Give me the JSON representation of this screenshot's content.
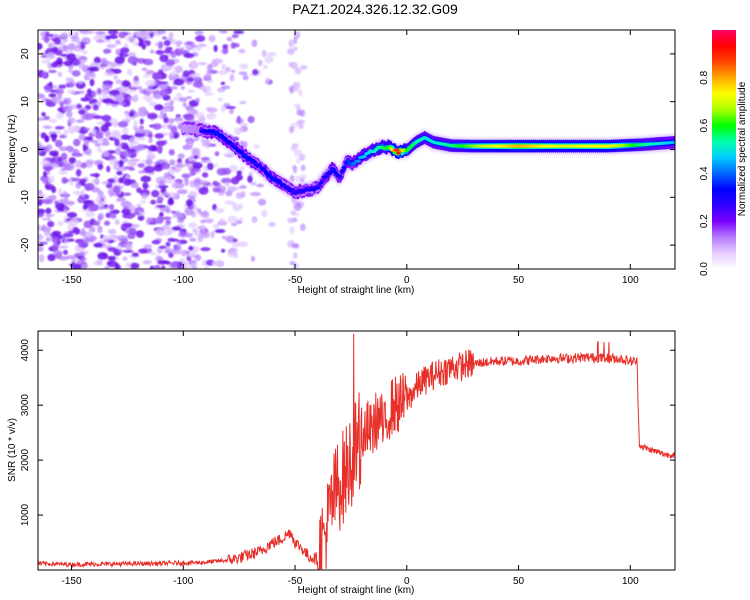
{
  "title": "PAZ1.2024.326.12.32.G09",
  "colors": {
    "series": "#e8302a",
    "specklePurple": "#8a2be2",
    "frame": "#000000"
  },
  "chart_data": [
    {
      "type": "heatmap",
      "xlabel": "Height of straight line (km)",
      "ylabel": "Frequency (Hz)",
      "xlim": [
        -165,
        120
      ],
      "ylim": [
        -25,
        25
      ],
      "xticks": [
        -150,
        -100,
        -50,
        0,
        50,
        100
      ],
      "yticks": [
        -20,
        -10,
        0,
        10,
        20
      ],
      "colorbar": {
        "label": "Normalized spectral amplitude",
        "range": [
          0,
          1
        ],
        "ticks": [
          "0.0",
          "0.2",
          "0.4",
          "0.6",
          "0.8"
        ],
        "colormap": [
          "#ffffff",
          "#e6ccff",
          "#b57bff",
          "#7b00ff",
          "#2f00ff",
          "#0000ff",
          "#0066ff",
          "#00ccff",
          "#00ffaa",
          "#00ff00",
          "#aaff00",
          "#ffff00",
          "#ffaa00",
          "#ff4400",
          "#ff0000",
          "#ff0066"
        ]
      },
      "ridge": {
        "x": [
          -100,
          -92,
          -85,
          -78,
          -72,
          -66,
          -60,
          -55,
          -50,
          -45,
          -40,
          -37,
          -33,
          -30,
          -27,
          -24,
          -20,
          -16,
          -12,
          -8,
          -4,
          0,
          4,
          8,
          12,
          20,
          30,
          50,
          70,
          90,
          105,
          120
        ],
        "y": [
          4.5,
          4,
          3.5,
          1,
          -1.5,
          -3.5,
          -6,
          -7.5,
          -9,
          -8.5,
          -8,
          -6,
          -4,
          -6,
          -2.5,
          -3,
          -1.5,
          -0.5,
          0.5,
          0.5,
          -0.5,
          -0.2,
          1.5,
          2.5,
          1.5,
          0.8,
          0.7,
          0.7,
          0.7,
          0.7,
          1,
          1.5
        ],
        "amplitude": [
          0.25,
          0.3,
          0.35,
          0.3,
          0.35,
          0.3,
          0.35,
          0.3,
          0.3,
          0.3,
          0.3,
          0.3,
          0.35,
          0.3,
          0.35,
          0.4,
          0.45,
          0.5,
          0.55,
          0.6,
          0.95,
          0.6,
          0.55,
          0.5,
          0.5,
          0.55,
          0.65,
          0.8,
          0.7,
          0.75,
          0.55,
          0.45
        ]
      }
    },
    {
      "type": "line",
      "xlabel": "Height of straight line (km)",
      "ylabel": "SNR (10 * v/v)",
      "xlim": [
        -165,
        120
      ],
      "ylim": [
        0,
        4350
      ],
      "xticks": [
        -150,
        -100,
        -50,
        0,
        50,
        100
      ],
      "yticks": [
        1000,
        2000,
        3000,
        4000
      ],
      "grid": false,
      "series": [
        {
          "x": [
            -165,
            -150,
            -130,
            -110,
            -90,
            -80,
            -75,
            -70,
            -65,
            -62,
            -60,
            -58,
            -55,
            -52,
            -50,
            -47,
            -44,
            -40,
            -38,
            -36,
            -34,
            -32,
            -30,
            -28,
            -26,
            -24,
            -22,
            -20,
            -18,
            -16,
            -14,
            -12,
            -10,
            -8,
            -6,
            -4,
            -2,
            0,
            2,
            4,
            6,
            8,
            10,
            12,
            15,
            18,
            21,
            24,
            27,
            30,
            35,
            40,
            45,
            50,
            55,
            60,
            65,
            70,
            75,
            80,
            85,
            90,
            95,
            100,
            103,
            104,
            105,
            108,
            112,
            116,
            120
          ],
          "y": [
            120,
            100,
            110,
            120,
            140,
            180,
            220,
            280,
            350,
            450,
            500,
            520,
            600,
            700,
            500,
            400,
            250,
            200,
            450,
            700,
            1100,
            1400,
            1600,
            1700,
            1900,
            2100,
            2300,
            2450,
            2600,
            2500,
            2700,
            2800,
            2500,
            2900,
            3000,
            3000,
            3050,
            3100,
            3200,
            3300,
            3400,
            3450,
            3500,
            3550,
            3600,
            3650,
            3700,
            3700,
            3750,
            3750,
            3780,
            3800,
            3800,
            3800,
            3820,
            3840,
            3860,
            3850,
            3860,
            3870,
            3860,
            3850,
            3850,
            3800,
            3800,
            2300,
            2250,
            2200,
            2150,
            2100,
            2100
          ]
        }
      ]
    }
  ]
}
